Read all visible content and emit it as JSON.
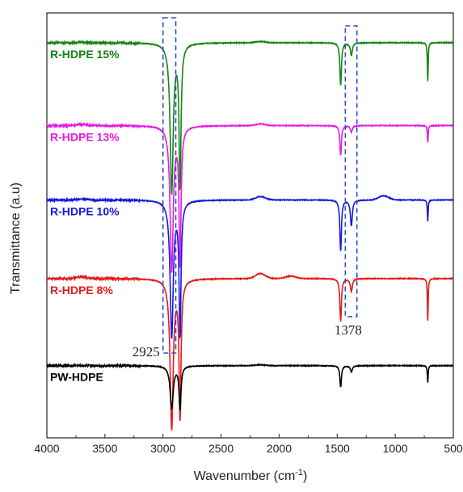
{
  "chart_data": {
    "type": "line",
    "title": "",
    "xlabel": "Wavenumber (cm",
    "xlabel_sup": "-1",
    "xlabel_tail": ")",
    "ylabel": "Transmittance (a.u)",
    "xlim": [
      4000,
      500
    ],
    "x_reversed": true,
    "y_tick_labels": false,
    "grid": false,
    "legend": "inline labels",
    "x_ticks": [
      4000,
      3500,
      3000,
      2500,
      2000,
      1500,
      1000,
      500
    ],
    "x_tick_labels": [
      "4000",
      "3500",
      "3000",
      "2500",
      "2000",
      "1500",
      "1000",
      "500"
    ],
    "series": [
      {
        "name": "R-HDPE 15%",
        "color": "#138513",
        "baseline": 0.93,
        "bumps": [
          [
            3700,
            0.001
          ],
          [
            2160,
            0.003
          ]
        ],
        "peaks": [
          [
            2925,
            0.35,
            16
          ],
          [
            2853,
            0.33,
            10
          ],
          [
            1470,
            0.1,
            8
          ],
          [
            1378,
            0.03,
            10
          ],
          [
            720,
            0.09,
            4
          ]
        ]
      },
      {
        "name": "R-HDPE 13%",
        "color": "#e619e6",
        "baseline": 0.735,
        "bumps": [
          [
            3700,
            0.003
          ],
          [
            2160,
            0.004
          ]
        ],
        "peaks": [
          [
            2925,
            0.34,
            16
          ],
          [
            2853,
            0.32,
            10
          ],
          [
            1470,
            0.07,
            8
          ],
          [
            1378,
            0.015,
            10
          ],
          [
            720,
            0.04,
            4
          ]
        ]
      },
      {
        "name": "R-HDPE 10%",
        "color": "#1818e0",
        "baseline": 0.56,
        "bumps": [
          [
            3700,
            0.002
          ],
          [
            2160,
            0.008
          ],
          [
            1100,
            0.01
          ]
        ],
        "peaks": [
          [
            2925,
            0.32,
            16
          ],
          [
            2853,
            0.31,
            10
          ],
          [
            1470,
            0.12,
            8
          ],
          [
            1378,
            0.06,
            10
          ],
          [
            720,
            0.05,
            4
          ]
        ]
      },
      {
        "name": "R-HDPE 8%",
        "color": "#e61919",
        "baseline": 0.375,
        "bumps": [
          [
            3700,
            0.004
          ],
          [
            2160,
            0.012
          ],
          [
            1900,
            0.006
          ]
        ],
        "peaks": [
          [
            2925,
            0.35,
            16
          ],
          [
            2853,
            0.32,
            10
          ],
          [
            1470,
            0.1,
            8
          ],
          [
            1378,
            0.03,
            10
          ],
          [
            720,
            0.1,
            4
          ]
        ]
      },
      {
        "name": "PW-HDPE",
        "color": "#000000",
        "baseline": 0.17,
        "bumps": [
          [
            2160,
            0.002
          ]
        ],
        "peaks": [
          [
            2925,
            0.1,
            16
          ],
          [
            2853,
            0.1,
            10
          ],
          [
            1470,
            0.05,
            8
          ],
          [
            1378,
            0.015,
            10
          ],
          [
            720,
            0.04,
            4
          ]
        ]
      }
    ],
    "annotations": [
      {
        "text": "2925",
        "x": 2925
      },
      {
        "text": "1378",
        "x": 1378
      }
    ]
  }
}
